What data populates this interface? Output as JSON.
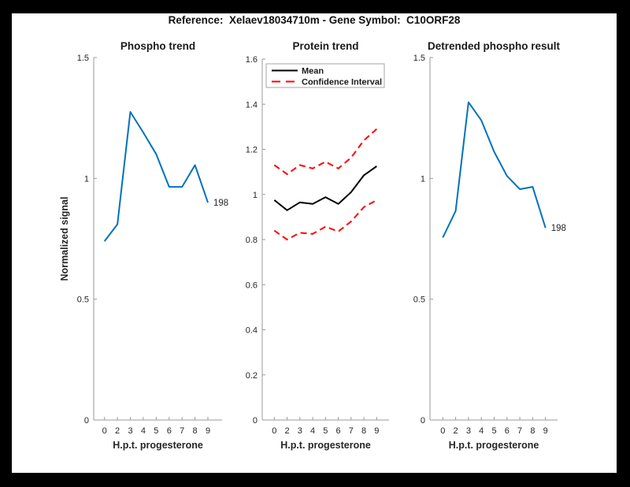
{
  "figure": {
    "title": "Reference:  Xelaev18034710m - Gene Symbol:  C10ORF28",
    "background": "#ffffff",
    "outer_background": "#000000"
  },
  "colors": {
    "matlab_blue": "#0072BD",
    "ci_red": "#FF0000",
    "mean_black": "#000000",
    "axis_gray": "#9a9a9a",
    "text_dark": "#262626"
  },
  "chart_data": [
    {
      "type": "line",
      "title": "Phospho trend",
      "xlabel": "H.p.t. progesterone",
      "ylabel": "Normalized signal",
      "categories": [
        "0",
        "2",
        "3",
        "4",
        "5",
        "6",
        "7",
        "8",
        "9"
      ],
      "ylim": [
        0,
        1.5
      ],
      "yticks": [
        0,
        0.5,
        1,
        1.5
      ],
      "grid": false,
      "legend": null,
      "end_annotation": "198",
      "series": [
        {
          "name": "phospho-signal",
          "color": "#0072BD",
          "dash": false,
          "values": [
            0.74,
            0.81,
            1.275,
            1.19,
            1.1,
            0.965,
            0.965,
            1.055,
            0.9
          ]
        }
      ]
    },
    {
      "type": "line",
      "title": "Protein trend",
      "xlabel": "H.p.t. progesterone",
      "ylabel": null,
      "categories": [
        "0",
        "2",
        "3",
        "4",
        "5",
        "6",
        "7",
        "8",
        "9"
      ],
      "ylim": [
        0,
        1.6
      ],
      "yticks": [
        0,
        0.2,
        0.4,
        0.6,
        0.8,
        1,
        1.2,
        1.4,
        1.6
      ],
      "grid": false,
      "end_annotation": null,
      "legend": {
        "position": "northwest",
        "items": [
          {
            "label": "Mean",
            "color": "#000000",
            "dash": false
          },
          {
            "label": "Confidence Interval",
            "color": "#FF0000",
            "dash": true
          }
        ]
      },
      "series": [
        {
          "name": "mean",
          "color": "#000000",
          "dash": false,
          "values": [
            0.975,
            0.93,
            0.965,
            0.958,
            0.988,
            0.958,
            1.01,
            1.085,
            1.125
          ]
        },
        {
          "name": "ci-upper",
          "color": "#FF0000",
          "dash": true,
          "values": [
            1.13,
            1.09,
            1.13,
            1.115,
            1.145,
            1.115,
            1.163,
            1.24,
            1.29
          ]
        },
        {
          "name": "ci-lower",
          "color": "#FF0000",
          "dash": true,
          "values": [
            0.84,
            0.8,
            0.83,
            0.825,
            0.857,
            0.836,
            0.88,
            0.944,
            0.975
          ]
        }
      ]
    },
    {
      "type": "line",
      "title": "Detrended phospho result",
      "xlabel": "H.p.t. progesterone",
      "ylabel": null,
      "categories": [
        "0",
        "2",
        "3",
        "4",
        "5",
        "6",
        "7",
        "8",
        "9"
      ],
      "ylim": [
        0,
        1.5
      ],
      "yticks": [
        0,
        0.5,
        1,
        1.5
      ],
      "grid": false,
      "legend": null,
      "end_annotation": "198",
      "series": [
        {
          "name": "detrended-phospho-signal",
          "color": "#0072BD",
          "dash": false,
          "values": [
            0.755,
            0.865,
            1.315,
            1.24,
            1.11,
            1.01,
            0.955,
            0.965,
            0.795
          ]
        }
      ]
    }
  ]
}
